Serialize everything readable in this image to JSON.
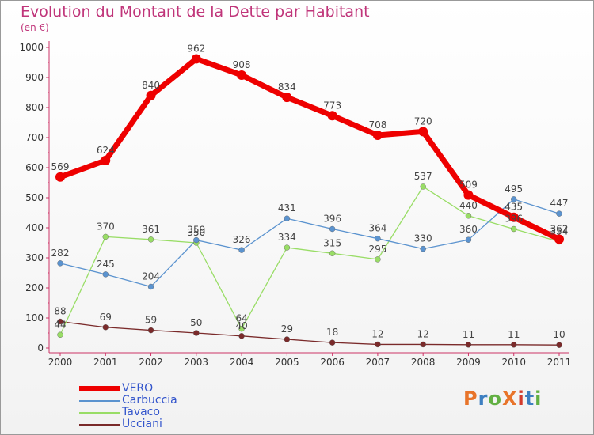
{
  "title": "Evolution du Montant de la Dette par Habitant",
  "subtitle": "(en €)",
  "logo": {
    "text": "ProXiti",
    "colors": [
      "#e8742a",
      "#3d7fc1",
      "#62b043",
      "#e8742a",
      "#d33b2c",
      "#3d7fc1",
      "#62b043"
    ]
  },
  "chart_data": {
    "type": "line",
    "x": [
      "2000",
      "2001",
      "2002",
      "2003",
      "2004",
      "2005",
      "2006",
      "2007",
      "2008",
      "2009",
      "2010",
      "2011"
    ],
    "ylim": [
      0,
      1000
    ],
    "yticks": [
      0,
      100,
      200,
      300,
      400,
      500,
      600,
      700,
      800,
      900,
      1000
    ],
    "grid": false,
    "legend_position": "bottom-left",
    "series": [
      {
        "name": "VERO",
        "color": "#ee0000",
        "values": [
          569,
          624,
          840,
          962,
          908,
          834,
          773,
          708,
          720,
          509,
          435,
          362
        ]
      },
      {
        "name": "Carbuccia",
        "color": "#5b93cf",
        "values": [
          282,
          245,
          204,
          359,
          326,
          431,
          396,
          364,
          330,
          360,
          495,
          447
        ]
      },
      {
        "name": "Tavaco",
        "color": "#99dd66",
        "values": [
          44,
          370,
          361,
          350,
          64,
          334,
          315,
          295,
          537,
          440,
          396,
          354
        ]
      },
      {
        "name": "Ucciani",
        "color": "#7a2a2a",
        "values": [
          88,
          69,
          59,
          50,
          40,
          29,
          18,
          12,
          12,
          11,
          11,
          10
        ]
      }
    ]
  }
}
